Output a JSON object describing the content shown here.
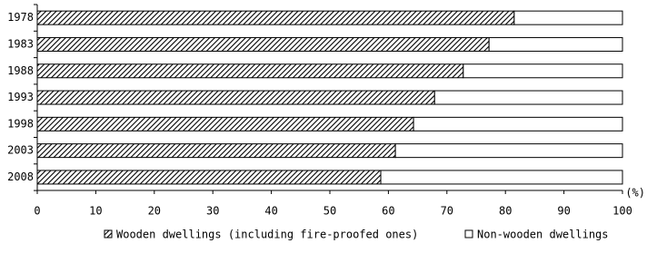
{
  "chart_data": {
    "type": "bar",
    "orientation": "horizontal",
    "stacked": true,
    "x_unit": "(%)",
    "categories": [
      "1978",
      "1983",
      "1988",
      "1993",
      "1998",
      "2003",
      "2008"
    ],
    "series": [
      {
        "name": "Wooden dwellings (including fire-proofed ones)",
        "color": "#000000",
        "pattern": "hatch",
        "values": [
          81.5,
          77.2,
          72.8,
          67.9,
          64.3,
          61.2,
          58.7
        ]
      },
      {
        "name": "Non-wooden dwellings",
        "color": "#ffffff",
        "pattern": "none",
        "values": [
          18.5,
          22.8,
          27.2,
          32.1,
          35.7,
          38.8,
          41.3
        ]
      }
    ],
    "xlim": [
      0,
      100
    ],
    "xticks": [
      0,
      10,
      20,
      30,
      40,
      50,
      60,
      70,
      80,
      90,
      100
    ]
  }
}
